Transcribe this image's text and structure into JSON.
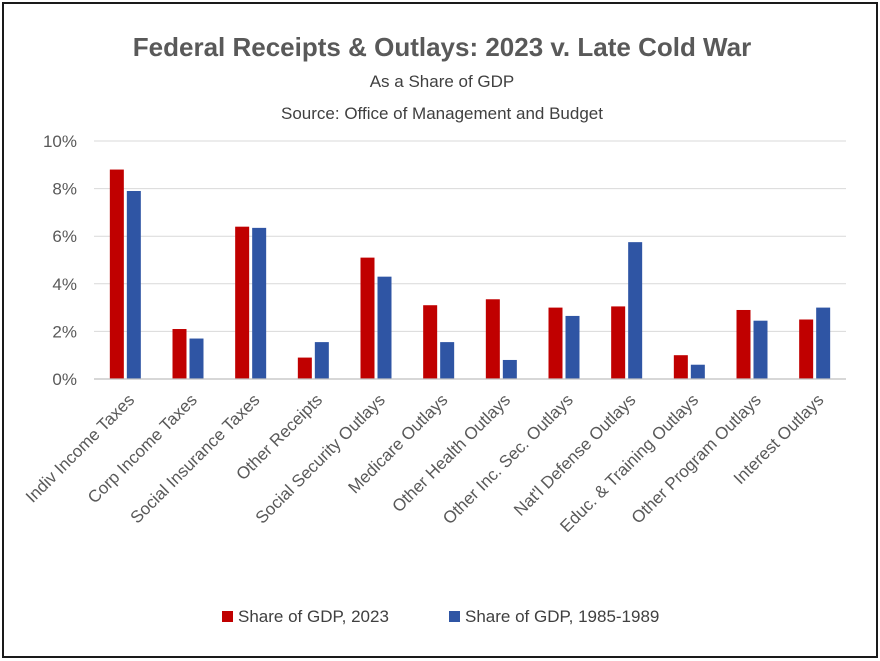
{
  "chart_data": {
    "type": "bar",
    "title": "Federal Receipts & Outlays:  2023 v. Late Cold War",
    "subtitle": "As a Share of GDP",
    "source": "Source:  Office of Management and Budget",
    "categories": [
      "Indiv Income Taxes",
      "Corp Income Taxes",
      "Social Insurance Taxes",
      "Other Receipts",
      "Social Security Outlays",
      "Medicare Outlays",
      "Other Health Outlays",
      "Other Inc. Sec. Outlays",
      "Nat'l Defense Outlays",
      "Educ. & Training Outlays",
      "Other Program Outlays",
      "Interest Outlays"
    ],
    "series": [
      {
        "name": "Share of GDP, 2023",
        "color": "#c00000",
        "values": [
          8.8,
          2.1,
          6.4,
          0.9,
          5.1,
          3.1,
          3.35,
          3.0,
          3.05,
          1.0,
          2.9,
          2.5
        ]
      },
      {
        "name": "Share of GDP, 1985-1989",
        "color": "#2f55a4",
        "values": [
          7.9,
          1.7,
          6.35,
          1.55,
          4.3,
          1.55,
          0.8,
          2.65,
          5.75,
          0.6,
          2.45,
          3.0
        ]
      }
    ],
    "yticks": [
      "0%",
      "2%",
      "4%",
      "6%",
      "8%",
      "10%"
    ],
    "ylim": [
      0,
      10
    ],
    "grid": true,
    "legend": "bottom"
  }
}
